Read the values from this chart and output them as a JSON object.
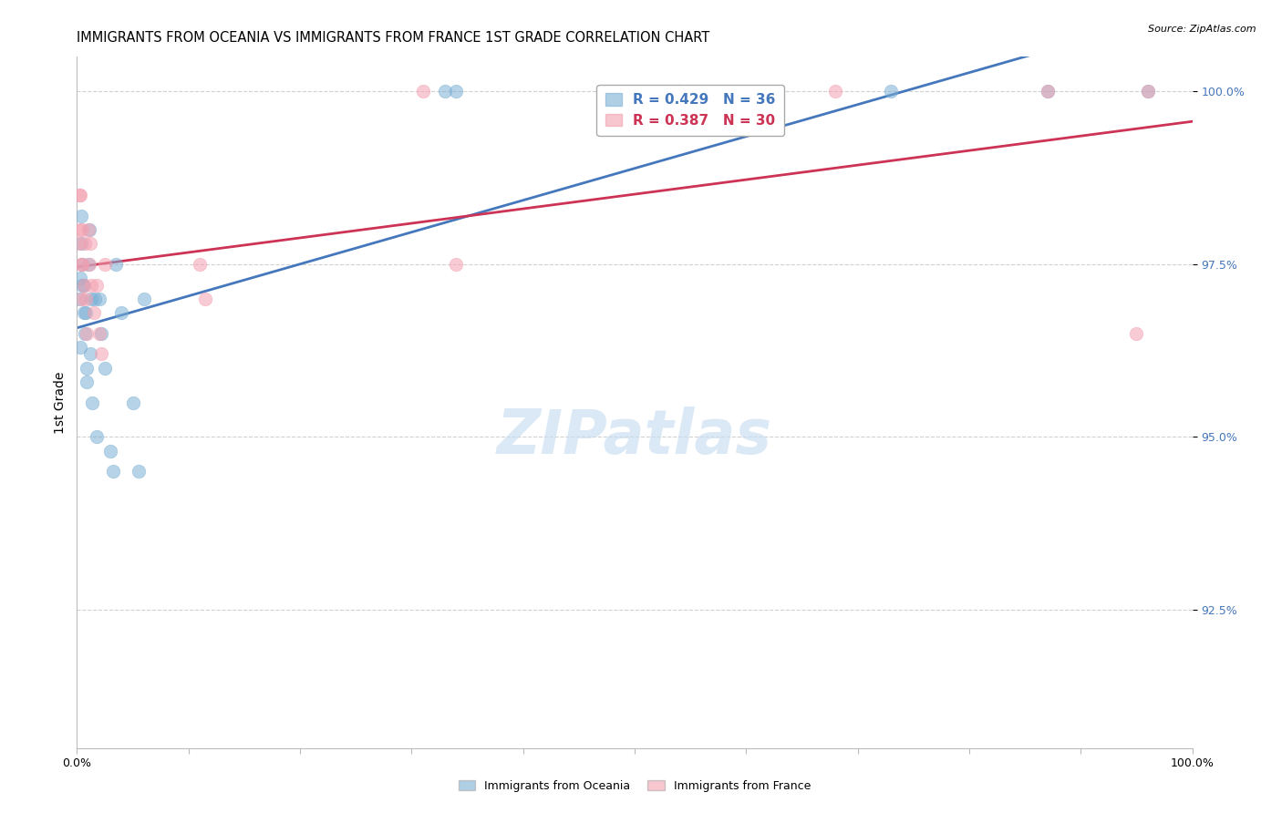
{
  "title": "IMMIGRANTS FROM OCEANIA VS IMMIGRANTS FROM FRANCE 1ST GRADE CORRELATION CHART",
  "source": "Source: ZipAtlas.com",
  "ylabel": "1st Grade",
  "xlim": [
    0.0,
    1.0
  ],
  "ylim": [
    0.905,
    1.005
  ],
  "xtick_positions": [
    0.0,
    0.1,
    0.2,
    0.3,
    0.4,
    0.5,
    0.6,
    0.7,
    0.8,
    0.9,
    1.0
  ],
  "xtick_labels": [
    "0.0%",
    "",
    "",
    "",
    "",
    "",
    "",
    "",
    "",
    "",
    "100.0%"
  ],
  "ytick_values": [
    0.925,
    0.95,
    0.975,
    1.0
  ],
  "ytick_labels": [
    "92.5%",
    "95.0%",
    "97.5%",
    "100.0%"
  ],
  "R_blue": 0.429,
  "N_blue": 36,
  "R_pink": 0.387,
  "N_pink": 30,
  "blue_color": "#7BAFD4",
  "pink_color": "#F4A0B0",
  "blue_line_color": "#4477BB",
  "pink_line_color": "#CC3355",
  "blue_x": [
    0.002,
    0.003,
    0.003,
    0.004,
    0.004,
    0.005,
    0.005,
    0.006,
    0.006,
    0.007,
    0.008,
    0.009,
    0.009,
    0.01,
    0.011,
    0.012,
    0.013,
    0.014,
    0.016,
    0.018,
    0.02,
    0.022,
    0.025,
    0.03,
    0.032,
    0.035,
    0.04,
    0.05,
    0.055,
    0.06,
    0.33,
    0.34,
    0.54,
    0.73,
    0.87,
    0.96
  ],
  "blue_y": [
    0.97,
    0.963,
    0.973,
    0.978,
    0.982,
    0.972,
    0.975,
    0.968,
    0.972,
    0.965,
    0.968,
    0.96,
    0.958,
    0.975,
    0.98,
    0.962,
    0.97,
    0.955,
    0.97,
    0.95,
    0.97,
    0.965,
    0.96,
    0.948,
    0.945,
    0.975,
    0.968,
    0.955,
    0.945,
    0.97,
    1.0,
    1.0,
    1.0,
    1.0,
    1.0,
    1.0
  ],
  "pink_x": [
    0.001,
    0.002,
    0.002,
    0.003,
    0.004,
    0.004,
    0.005,
    0.005,
    0.006,
    0.007,
    0.008,
    0.009,
    0.01,
    0.011,
    0.012,
    0.013,
    0.015,
    0.018,
    0.02,
    0.022,
    0.025,
    0.11,
    0.115,
    0.31,
    0.34,
    0.54,
    0.68,
    0.87,
    0.95,
    0.96
  ],
  "pink_y": [
    0.978,
    0.985,
    0.98,
    0.985,
    0.975,
    0.97,
    0.98,
    0.975,
    0.972,
    0.978,
    0.97,
    0.965,
    0.98,
    0.975,
    0.978,
    0.972,
    0.968,
    0.972,
    0.965,
    0.962,
    0.975,
    0.975,
    0.97,
    1.0,
    0.975,
    1.0,
    1.0,
    1.0,
    0.965,
    1.0
  ]
}
